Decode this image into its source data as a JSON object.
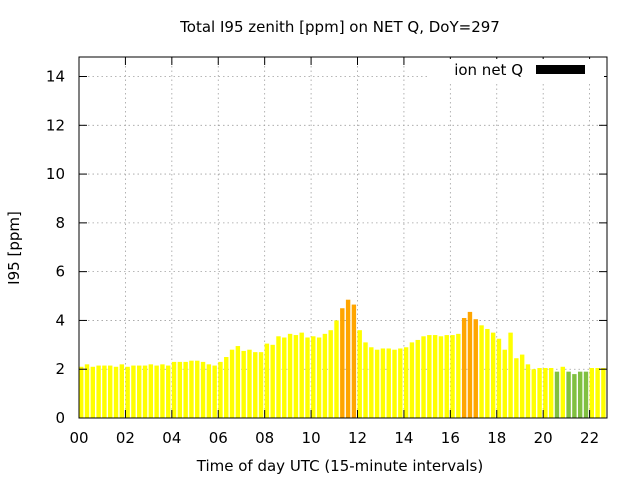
{
  "chart_data": {
    "type": "bar",
    "title": "Total I95 zenith [ppm] on NET Q, DoY=297",
    "xlabel": "Time of day UTC (15-minute intervals)",
    "ylabel": "I95 [ppm]",
    "xlim": [
      0,
      22.75
    ],
    "ylim": [
      0,
      14.8
    ],
    "grid": true,
    "bar_width_hours": 0.19,
    "x_ticks": [
      {
        "value": 0,
        "label": "00"
      },
      {
        "value": 2,
        "label": "02"
      },
      {
        "value": 4,
        "label": "04"
      },
      {
        "value": 6,
        "label": "06"
      },
      {
        "value": 8,
        "label": "08"
      },
      {
        "value": 10,
        "label": "10"
      },
      {
        "value": 12,
        "label": "12"
      },
      {
        "value": 14,
        "label": "14"
      },
      {
        "value": 16,
        "label": "16"
      },
      {
        "value": 18,
        "label": "18"
      },
      {
        "value": 20,
        "label": "20"
      },
      {
        "value": 22,
        "label": "22"
      }
    ],
    "y_ticks": [
      {
        "value": 0,
        "label": "0"
      },
      {
        "value": 2,
        "label": "2"
      },
      {
        "value": 4,
        "label": "4"
      },
      {
        "value": 6,
        "label": "6"
      },
      {
        "value": 8,
        "label": "8"
      },
      {
        "value": 10,
        "label": "10"
      },
      {
        "value": 12,
        "label": "12"
      },
      {
        "value": 14,
        "label": "14"
      }
    ],
    "legend": {
      "label": "ion net Q",
      "color": "#000000",
      "placement": "top-right"
    },
    "color_classes": {
      "yellow": "#ffff00",
      "orange": "#ffa500",
      "green": "#80c040"
    },
    "series": [
      {
        "name": "I95 zenith",
        "time_hours": [
          0.0,
          0.25,
          0.5,
          0.75,
          1.0,
          1.25,
          1.5,
          1.75,
          2.0,
          2.25,
          2.5,
          2.75,
          3.0,
          3.25,
          3.5,
          3.75,
          4.0,
          4.25,
          4.5,
          4.75,
          5.0,
          5.25,
          5.5,
          5.75,
          6.0,
          6.25,
          6.5,
          6.75,
          7.0,
          7.25,
          7.5,
          7.75,
          8.0,
          8.25,
          8.5,
          8.75,
          9.0,
          9.25,
          9.5,
          9.75,
          10.0,
          10.25,
          10.5,
          10.75,
          11.0,
          11.25,
          11.5,
          11.75,
          12.0,
          12.25,
          12.5,
          12.75,
          13.0,
          13.25,
          13.5,
          13.75,
          14.0,
          14.25,
          14.5,
          14.75,
          15.0,
          15.25,
          15.5,
          15.75,
          16.0,
          16.25,
          16.5,
          16.75,
          17.0,
          17.25,
          17.5,
          17.75,
          18.0,
          18.25,
          18.5,
          18.75,
          19.0,
          19.25,
          19.5,
          19.75,
          20.0,
          20.25,
          20.5,
          20.75,
          21.0,
          21.25,
          21.5,
          21.75,
          22.0,
          22.25,
          22.5
        ],
        "values": [
          2.1,
          2.2,
          2.1,
          2.15,
          2.15,
          2.15,
          2.1,
          2.2,
          2.1,
          2.15,
          2.15,
          2.15,
          2.2,
          2.15,
          2.2,
          2.15,
          2.3,
          2.3,
          2.3,
          2.35,
          2.35,
          2.3,
          2.2,
          2.15,
          2.3,
          2.5,
          2.8,
          2.95,
          2.75,
          2.8,
          2.7,
          2.7,
          3.05,
          3.0,
          3.35,
          3.3,
          3.45,
          3.4,
          3.5,
          3.3,
          3.35,
          3.3,
          3.45,
          3.6,
          4.0,
          4.5,
          4.85,
          4.65,
          3.6,
          3.1,
          2.9,
          2.8,
          2.85,
          2.85,
          2.8,
          2.85,
          2.9,
          3.1,
          3.2,
          3.35,
          3.4,
          3.4,
          3.35,
          3.4,
          3.4,
          3.45,
          4.1,
          4.35,
          4.05,
          3.8,
          3.65,
          3.5,
          3.25,
          2.8,
          3.5,
          2.45,
          2.6,
          2.2,
          2.0,
          2.05,
          2.05,
          2.05,
          1.9,
          2.1,
          1.9,
          1.8,
          1.9,
          1.9,
          2.05,
          2.05,
          2.05
        ],
        "color_class": [
          "yellow",
          "yellow",
          "yellow",
          "yellow",
          "yellow",
          "yellow",
          "yellow",
          "yellow",
          "yellow",
          "yellow",
          "yellow",
          "yellow",
          "yellow",
          "yellow",
          "yellow",
          "yellow",
          "yellow",
          "yellow",
          "yellow",
          "yellow",
          "yellow",
          "yellow",
          "yellow",
          "yellow",
          "yellow",
          "yellow",
          "yellow",
          "yellow",
          "yellow",
          "yellow",
          "yellow",
          "yellow",
          "yellow",
          "yellow",
          "yellow",
          "yellow",
          "yellow",
          "yellow",
          "yellow",
          "yellow",
          "yellow",
          "yellow",
          "yellow",
          "yellow",
          "yellow",
          "orange",
          "orange",
          "orange",
          "yellow",
          "yellow",
          "yellow",
          "yellow",
          "yellow",
          "yellow",
          "yellow",
          "yellow",
          "yellow",
          "yellow",
          "yellow",
          "yellow",
          "yellow",
          "yellow",
          "yellow",
          "yellow",
          "yellow",
          "yellow",
          "orange",
          "orange",
          "orange",
          "yellow",
          "yellow",
          "yellow",
          "yellow",
          "yellow",
          "yellow",
          "yellow",
          "yellow",
          "yellow",
          "yellow",
          "yellow",
          "yellow",
          "yellow",
          "green",
          "yellow",
          "green",
          "green",
          "green",
          "green",
          "yellow",
          "yellow",
          "yellow"
        ]
      }
    ]
  }
}
